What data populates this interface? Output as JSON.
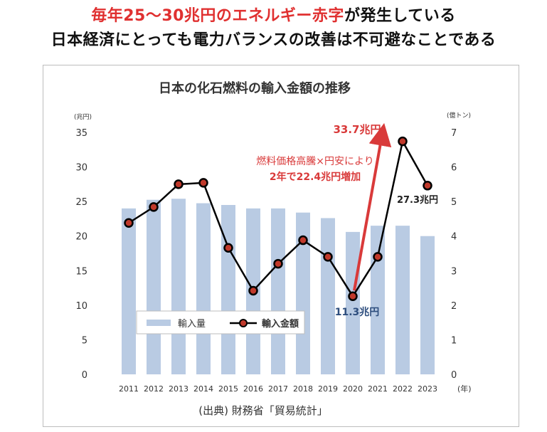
{
  "headline": {
    "line1_red": "毎年25〜30兆円のエネルギー赤字",
    "line1_rest": "が発生している",
    "line2": "日本経済にとっても電力バランスの改善は不可避なことである"
  },
  "chart_data": {
    "type": "bar+line",
    "title": "日本の化石燃料の輸入金額の推移",
    "categories": [
      "2011",
      "2012",
      "2013",
      "2014",
      "2015",
      "2016",
      "2017",
      "2018",
      "2019",
      "2020",
      "2021",
      "2022",
      "2023"
    ],
    "x_unit": "(年)",
    "y_left": {
      "unit": "(兆円)",
      "range": [
        0,
        35
      ],
      "ticks": [
        "0",
        "5",
        "10",
        "15",
        "20",
        "25",
        "30",
        "35"
      ]
    },
    "y_right": {
      "unit": "(億トン)",
      "range": [
        0,
        7
      ],
      "ticks": [
        "0",
        "1",
        "2",
        "3",
        "4",
        "5",
        "6",
        "7"
      ]
    },
    "series": [
      {
        "name": "輸入量",
        "kind": "bar",
        "axis": "right",
        "color": "#b9cbe3",
        "values": [
          4.8,
          5.05,
          5.08,
          4.95,
          4.9,
          4.8,
          4.8,
          4.68,
          4.52,
          4.12,
          4.3,
          4.3,
          4.0
        ]
      },
      {
        "name": "輸入金額",
        "kind": "line",
        "axis": "left",
        "color": "#000000",
        "marker_color": "#c0392b",
        "values": [
          21.9,
          24.2,
          27.5,
          27.7,
          18.3,
          12.1,
          16.0,
          19.4,
          17.0,
          11.3,
          17.0,
          33.7,
          27.3
        ]
      }
    ],
    "annotations": {
      "arrow_text_1": "燃料価格高騰×円安により",
      "arrow_text_2": "2年で22.4兆円増加",
      "label_2020": "11.3兆円",
      "label_2022": "33.7兆円",
      "label_2023": "27.3兆円"
    },
    "legend": {
      "position": "bottom-left",
      "entries": [
        "輸入量",
        "輸入金額"
      ]
    },
    "grid": false
  },
  "source": "(出典) 財務省「貿易統計」"
}
